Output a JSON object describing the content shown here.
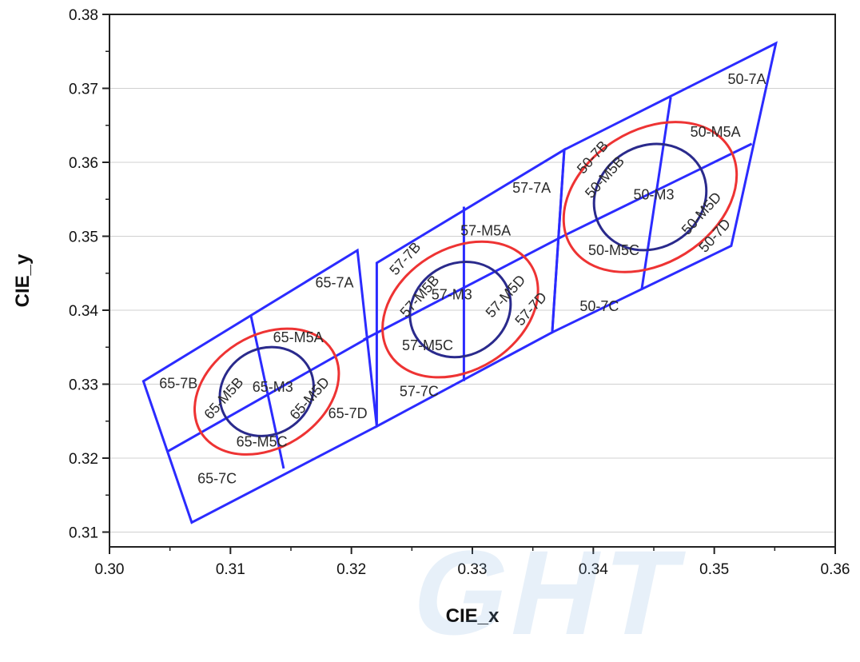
{
  "chart_data": {
    "type": "diagram",
    "xlabel": "CIE_x",
    "ylabel": "CIE_y",
    "xlim": [
      0.3,
      0.36
    ],
    "ylim": [
      0.308,
      0.38
    ],
    "x_ticks": [
      "0.30",
      "0.31",
      "0.32",
      "0.33",
      "0.34",
      "0.35",
      "0.36"
    ],
    "y_ticks": [
      "0.31",
      "0.32",
      "0.33",
      "0.34",
      "0.35",
      "0.36",
      "0.37",
      "0.38"
    ],
    "grid": "horizontal",
    "colors": {
      "quadrangles": "#2b2bff",
      "inner_ellipse": "#2a2a8c",
      "outer_ellipse": "#ee3333",
      "grid": "#d0d0d0"
    },
    "watermark": "GHT",
    "groups": [
      {
        "name": "65",
        "outline": [
          [
            0.3028,
            0.3304
          ],
          [
            0.3068,
            0.3113
          ],
          [
            0.3221,
            0.3243
          ],
          [
            0.3205,
            0.3481
          ]
        ],
        "inner_lines": [
          [
            [
              0.3048,
              0.3209
            ],
            [
              0.3213,
              0.3362
            ]
          ],
          [
            [
              0.3117,
              0.3392
            ],
            [
              0.3144,
              0.3186
            ]
          ]
        ],
        "ellipses": [
          {
            "kind": "M5",
            "center": [
              0.313,
              0.329
            ],
            "rx": 0.0064,
            "ry": 0.0076,
            "angle": 58
          },
          {
            "kind": "M3",
            "center": [
              0.313,
              0.329
            ],
            "rx": 0.004,
            "ry": 0.0058,
            "angle": 58
          }
        ],
        "labels": [
          {
            "text": "65-7A",
            "x": 0.3186,
            "y": 0.3436,
            "rotate": 0
          },
          {
            "text": "65-7B",
            "x": 0.3057,
            "y": 0.33,
            "rotate": 0
          },
          {
            "text": "65-7C",
            "x": 0.3089,
            "y": 0.3171,
            "rotate": 0
          },
          {
            "text": "65-7D",
            "x": 0.3197,
            "y": 0.3259,
            "rotate": 0
          },
          {
            "text": "65-M5A",
            "x": 0.3156,
            "y": 0.3362,
            "rotate": 0
          },
          {
            "text": "65-M5B",
            "x": 0.3095,
            "y": 0.328,
            "rotate": -48
          },
          {
            "text": "65-M5C",
            "x": 0.3126,
            "y": 0.3221,
            "rotate": 0
          },
          {
            "text": "65-M5D",
            "x": 0.3166,
            "y": 0.328,
            "rotate": -48
          },
          {
            "text": "65-M3",
            "x": 0.3135,
            "y": 0.3295,
            "rotate": 0
          }
        ]
      },
      {
        "name": "57",
        "outline": [
          [
            0.3221,
            0.3243
          ],
          [
            0.3221,
            0.3464
          ],
          [
            0.3376,
            0.3617
          ],
          [
            0.3366,
            0.337
          ]
        ],
        "inner_lines": [
          [
            [
              0.321,
              0.336
            ],
            [
              0.3376,
              0.3501
            ]
          ],
          [
            [
              0.3293,
              0.354
            ],
            [
              0.3293,
              0.3304
            ]
          ]
        ],
        "ellipses": [
          {
            "kind": "M5",
            "center": [
              0.329,
              0.3401
            ],
            "rx": 0.0069,
            "ry": 0.0082,
            "angle": 58
          },
          {
            "kind": "M3",
            "center": [
              0.329,
              0.3401
            ],
            "rx": 0.0043,
            "ry": 0.0062,
            "angle": 58
          }
        ],
        "labels": [
          {
            "text": "57-7A",
            "x": 0.3349,
            "y": 0.3564,
            "rotate": 0
          },
          {
            "text": "57-7B",
            "x": 0.3245,
            "y": 0.3469,
            "rotate": -48
          },
          {
            "text": "57-7C",
            "x": 0.3256,
            "y": 0.3289,
            "rotate": 0
          },
          {
            "text": "57-7D",
            "x": 0.3349,
            "y": 0.3401,
            "rotate": -48
          },
          {
            "text": "57-M5A",
            "x": 0.3311,
            "y": 0.3506,
            "rotate": 0
          },
          {
            "text": "57-M5B",
            "x": 0.3257,
            "y": 0.3418,
            "rotate": -48
          },
          {
            "text": "57-M5C",
            "x": 0.3263,
            "y": 0.3351,
            "rotate": 0
          },
          {
            "text": "57-M5D",
            "x": 0.3328,
            "y": 0.3418,
            "rotate": -48
          },
          {
            "text": "57-M3",
            "x": 0.3283,
            "y": 0.342,
            "rotate": 0
          }
        ]
      },
      {
        "name": "50",
        "outline": [
          [
            0.3366,
            0.337
          ],
          [
            0.3376,
            0.3617
          ],
          [
            0.3551,
            0.3761
          ],
          [
            0.3514,
            0.3487
          ]
        ],
        "inner_lines": [
          [
            [
              0.3376,
              0.3501
            ],
            [
              0.3531,
              0.3625
            ]
          ],
          [
            [
              0.3464,
              0.3688
            ],
            [
              0.344,
              0.3428
            ]
          ]
        ],
        "ellipses": [
          {
            "kind": "M5",
            "center": [
              0.3447,
              0.3553
            ],
            "rx": 0.0077,
            "ry": 0.009,
            "angle": 58
          },
          {
            "kind": "M3",
            "center": [
              0.3447,
              0.3553
            ],
            "rx": 0.0048,
            "ry": 0.0069,
            "angle": 58
          }
        ],
        "labels": [
          {
            "text": "50-7A",
            "x": 0.3527,
            "y": 0.3711,
            "rotate": 0
          },
          {
            "text": "50-7B",
            "x": 0.34,
            "y": 0.3606,
            "rotate": -48
          },
          {
            "text": "50-7C",
            "x": 0.3405,
            "y": 0.3404,
            "rotate": 0
          },
          {
            "text": "50-7D",
            "x": 0.3501,
            "y": 0.35,
            "rotate": -48
          },
          {
            "text": "50-M5A",
            "x": 0.3501,
            "y": 0.364,
            "rotate": 0
          },
          {
            "text": "50-M5B",
            "x": 0.341,
            "y": 0.3579,
            "rotate": -48
          },
          {
            "text": "50-M5C",
            "x": 0.3417,
            "y": 0.348,
            "rotate": 0
          },
          {
            "text": "50-M5D",
            "x": 0.349,
            "y": 0.353,
            "rotate": -48
          },
          {
            "text": "50-M3",
            "x": 0.345,
            "y": 0.3555,
            "rotate": 0
          }
        ]
      }
    ]
  }
}
